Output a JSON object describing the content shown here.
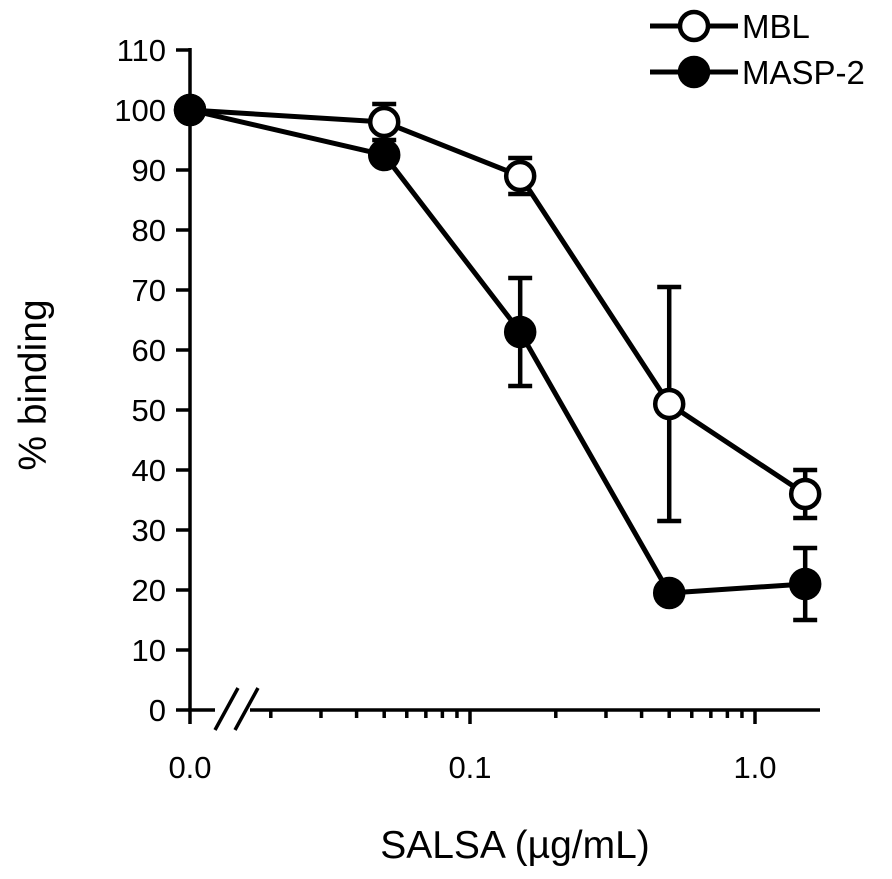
{
  "chart_data": {
    "type": "line",
    "xlabel": "SALSA (µg/mL)",
    "ylabel": "% binding",
    "x_scale": "log",
    "x_axis_break": true,
    "x_ticks": [
      "0.0",
      "0.1",
      "1.0"
    ],
    "ylim": [
      0,
      110
    ],
    "y_ticks": [
      0,
      10,
      20,
      30,
      40,
      50,
      60,
      70,
      80,
      90,
      100,
      110
    ],
    "x": [
      "0.0",
      0.05,
      0.15,
      0.5,
      1.5
    ],
    "series": [
      {
        "name": "MBL",
        "marker": "open-circle",
        "values": [
          100,
          98,
          89,
          51,
          36
        ],
        "error": [
          0,
          3,
          3,
          19.5,
          4
        ]
      },
      {
        "name": "MASP-2",
        "marker": "filled-circle",
        "values": [
          100,
          92.5,
          63,
          19.5,
          21
        ],
        "error": [
          0,
          0,
          9,
          0,
          6
        ]
      }
    ],
    "legend_position": "top-right",
    "grid": false
  }
}
